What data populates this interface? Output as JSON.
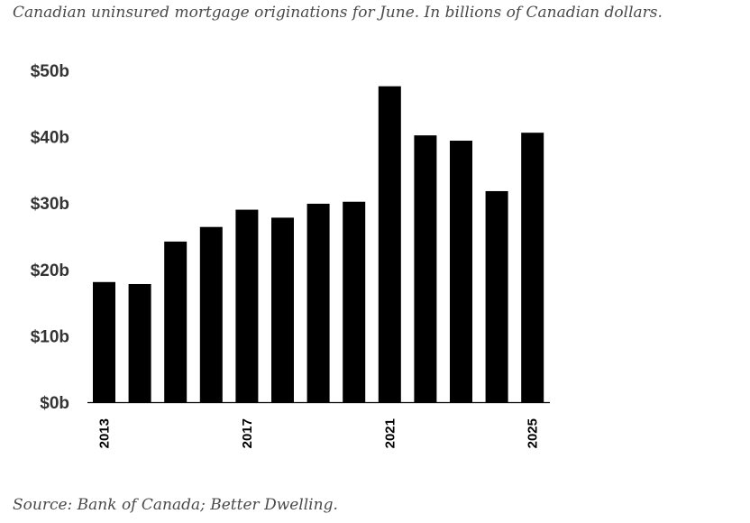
{
  "subtitle": "Canadian uninsured mortgage originations for June. In billions of Canadian dollars.",
  "source": "Source: Bank of Canada; Better Dwelling.",
  "chart_data": {
    "type": "bar",
    "title": "",
    "xlabel": "",
    "ylabel": "",
    "categories": [
      "2013",
      "2014",
      "2015",
      "2016",
      "2017",
      "2018",
      "2019",
      "2020",
      "2021",
      "2022",
      "2023",
      "2024",
      "2025"
    ],
    "values": [
      18.1,
      17.8,
      24.2,
      26.4,
      29.0,
      27.8,
      29.9,
      30.2,
      47.6,
      40.2,
      39.4,
      31.8,
      40.6
    ],
    "visible_x_tick_labels": [
      "2013",
      "2017",
      "2021",
      "2025"
    ],
    "y_tick_values": [
      0,
      10,
      20,
      30,
      40,
      50
    ],
    "y_tick_labels": [
      "$0b",
      "$10b",
      "$20b",
      "$30b",
      "$40b",
      "$50b"
    ],
    "ylim": [
      0,
      50
    ],
    "grid": false,
    "legend": "none",
    "bar_color": "#000000"
  }
}
